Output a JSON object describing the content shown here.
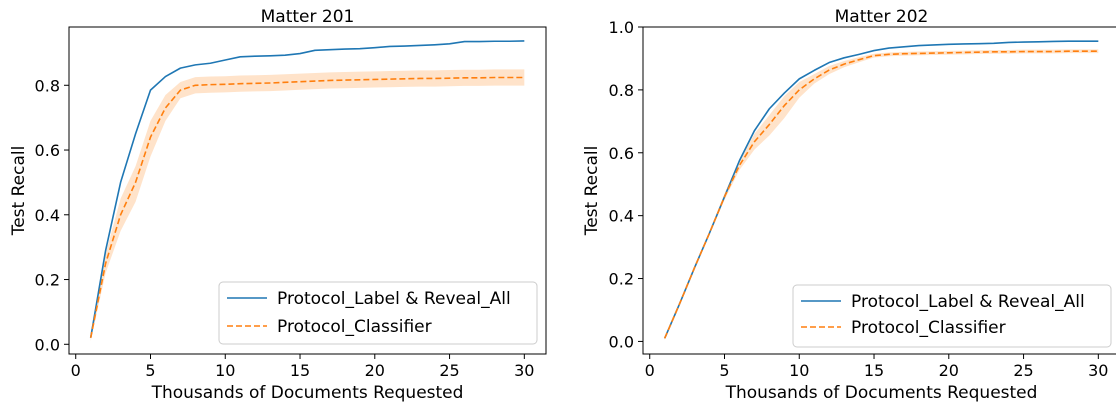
{
  "chart_data": [
    {
      "type": "line",
      "title": "Matter 201",
      "xlabel": "Thousands of Documents Requested",
      "ylabel": "Test Recall",
      "xlim": [
        -0.45,
        31.45
      ],
      "ylim": [
        -0.03,
        0.98
      ],
      "xticks": [
        0,
        5,
        10,
        15,
        20,
        25,
        30
      ],
      "yticks": [
        0.0,
        0.2,
        0.4,
        0.6,
        0.8
      ],
      "ytick_labels": [
        "0.0",
        "0.2",
        "0.4",
        "0.6",
        "0.8"
      ],
      "legend_position": "lower-right",
      "x": [
        1,
        2,
        3,
        4,
        5,
        6,
        7,
        8,
        9,
        10,
        11,
        12,
        13,
        14,
        15,
        16,
        17,
        18,
        19,
        20,
        21,
        22,
        23,
        24,
        25,
        26,
        27,
        28,
        29,
        30
      ],
      "series": [
        {
          "name": "Protocol_Label & Reveal_All",
          "color": "#1f77b4",
          "style": "solid",
          "values": [
            0.02,
            0.29,
            0.5,
            0.65,
            0.785,
            0.827,
            0.853,
            0.863,
            0.868,
            0.878,
            0.888,
            0.89,
            0.891,
            0.893,
            0.898,
            0.908,
            0.91,
            0.912,
            0.913,
            0.916,
            0.92,
            0.921,
            0.923,
            0.925,
            0.928,
            0.935,
            0.935,
            0.936,
            0.936,
            0.937
          ]
        },
        {
          "name": "Protocol_Classifier",
          "color": "#ff7f0e",
          "style": "dashed",
          "values": [
            0.02,
            0.25,
            0.4,
            0.5,
            0.64,
            0.73,
            0.785,
            0.8,
            0.802,
            0.803,
            0.805,
            0.806,
            0.807,
            0.809,
            0.811,
            0.813,
            0.815,
            0.816,
            0.817,
            0.818,
            0.819,
            0.82,
            0.821,
            0.821,
            0.822,
            0.823,
            0.823,
            0.824,
            0.824,
            0.824
          ],
          "band_lower": [
            0.01,
            0.22,
            0.35,
            0.44,
            0.58,
            0.69,
            0.76,
            0.775,
            0.777,
            0.778,
            0.78,
            0.781,
            0.782,
            0.784,
            0.786,
            0.788,
            0.79,
            0.791,
            0.792,
            0.793,
            0.794,
            0.795,
            0.796,
            0.796,
            0.797,
            0.798,
            0.798,
            0.799,
            0.799,
            0.799
          ],
          "band_upper": [
            0.03,
            0.28,
            0.45,
            0.55,
            0.69,
            0.77,
            0.81,
            0.825,
            0.827,
            0.828,
            0.83,
            0.831,
            0.832,
            0.834,
            0.836,
            0.838,
            0.84,
            0.841,
            0.842,
            0.843,
            0.844,
            0.845,
            0.846,
            0.846,
            0.847,
            0.848,
            0.848,
            0.849,
            0.849,
            0.849
          ]
        }
      ]
    },
    {
      "type": "line",
      "title": "Matter 202",
      "xlabel": "Thousands of Documents Requested",
      "ylabel": "Test Recall",
      "xlim": [
        -0.45,
        31.45
      ],
      "ylim": [
        -0.04,
        1.0
      ],
      "xticks": [
        0,
        5,
        10,
        15,
        20,
        25,
        30
      ],
      "yticks": [
        0.0,
        0.2,
        0.4,
        0.6,
        0.8,
        1.0
      ],
      "ytick_labels": [
        "0.0",
        "0.2",
        "0.4",
        "0.6",
        "0.8",
        "1.0"
      ],
      "legend_position": "lower-right",
      "x": [
        1,
        2,
        3,
        4,
        5,
        6,
        7,
        8,
        9,
        10,
        11,
        12,
        13,
        14,
        15,
        16,
        17,
        18,
        19,
        20,
        21,
        22,
        23,
        24,
        25,
        26,
        27,
        28,
        29,
        30
      ],
      "series": [
        {
          "name": "Protocol_Label & Reveal_All",
          "color": "#1f77b4",
          "style": "solid",
          "values": [
            0.01,
            0.12,
            0.235,
            0.345,
            0.46,
            0.575,
            0.67,
            0.74,
            0.79,
            0.835,
            0.862,
            0.887,
            0.902,
            0.913,
            0.925,
            0.933,
            0.937,
            0.941,
            0.943,
            0.945,
            0.946,
            0.947,
            0.948,
            0.951,
            0.952,
            0.953,
            0.954,
            0.955,
            0.955,
            0.955
          ]
        },
        {
          "name": "Protocol_Classifier",
          "color": "#ff7f0e",
          "style": "dashed",
          "values": [
            0.01,
            0.12,
            0.235,
            0.345,
            0.46,
            0.56,
            0.635,
            0.69,
            0.75,
            0.8,
            0.835,
            0.863,
            0.882,
            0.896,
            0.909,
            0.913,
            0.915,
            0.916,
            0.917,
            0.918,
            0.919,
            0.92,
            0.921,
            0.921,
            0.922,
            0.922,
            0.922,
            0.923,
            0.923,
            0.923
          ],
          "band_lower": [
            0.005,
            0.115,
            0.23,
            0.34,
            0.45,
            0.545,
            0.61,
            0.655,
            0.71,
            0.775,
            0.82,
            0.85,
            0.872,
            0.888,
            0.903,
            0.907,
            0.909,
            0.91,
            0.911,
            0.912,
            0.913,
            0.914,
            0.915,
            0.915,
            0.916,
            0.916,
            0.916,
            0.917,
            0.917,
            0.917
          ],
          "band_upper": [
            0.015,
            0.125,
            0.24,
            0.35,
            0.47,
            0.575,
            0.66,
            0.72,
            0.78,
            0.825,
            0.85,
            0.876,
            0.892,
            0.904,
            0.915,
            0.919,
            0.921,
            0.922,
            0.923,
            0.924,
            0.925,
            0.926,
            0.927,
            0.927,
            0.928,
            0.928,
            0.928,
            0.929,
            0.929,
            0.929
          ]
        }
      ]
    }
  ]
}
